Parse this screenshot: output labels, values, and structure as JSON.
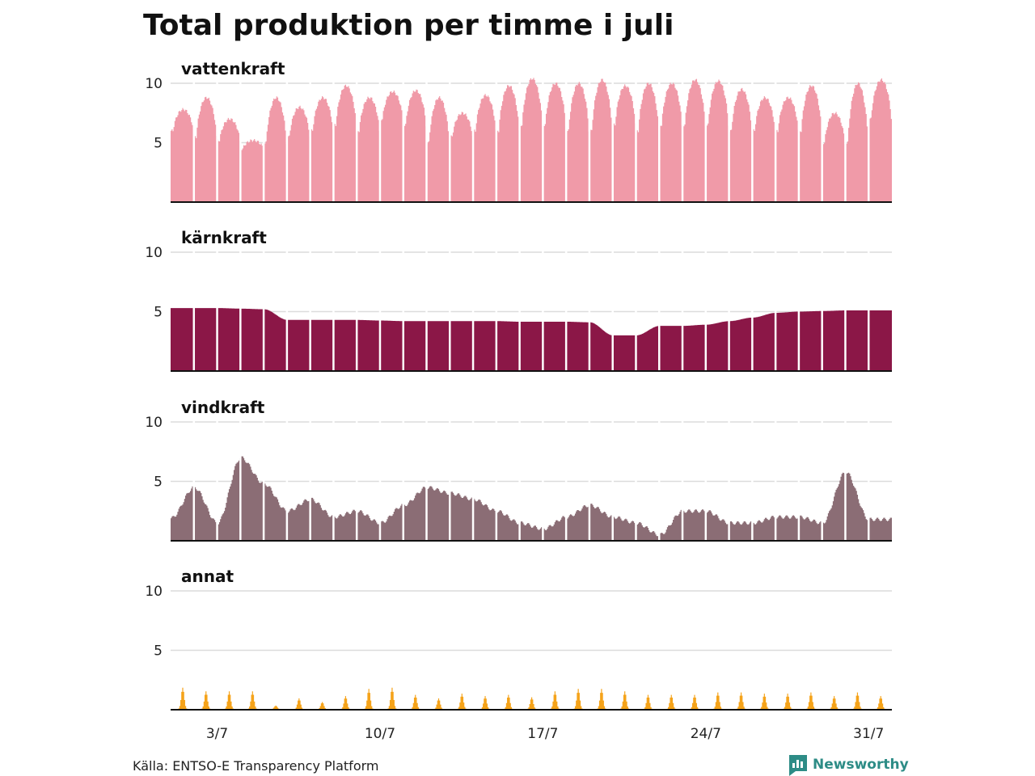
{
  "title": "Total produktion per timme i juli",
  "source": "Källa: ENTSO-E Transparency Platform",
  "brand": "Newsworthy",
  "brand_icon": "bar-chart-speech-bubble-icon",
  "colors": {
    "vattenkraft": "#f09aa8",
    "kärnkraft": "#8b1747",
    "vindkraft": "#8b6d75",
    "annat": "#f5a31a",
    "brand": "#2d8c86"
  },
  "chart_data": {
    "type": "area",
    "small_multiples": true,
    "x_unit": "day of July (hourly data)",
    "xlim": [
      1,
      32
    ],
    "xticks": [
      {
        "day": 3,
        "label": "3/7"
      },
      {
        "day": 10,
        "label": "10/7"
      },
      {
        "day": 17,
        "label": "17/7"
      },
      {
        "day": 24,
        "label": "24/7"
      },
      {
        "day": 31,
        "label": "31/7"
      }
    ],
    "ylim": [
      0,
      10.5
    ],
    "yticks": [
      5,
      10
    ],
    "grid": true,
    "series": [
      {
        "name": "vattenkraft",
        "daily_shape": "strong daily cycle, low at night, peak daytime",
        "daily_min": [
          6.0,
          5.5,
          5.2,
          4.5,
          5.0,
          5.5,
          6.0,
          6.5,
          6.0,
          7.0,
          6.5,
          5.0,
          5.5,
          6.0,
          6.0,
          6.5,
          6.5,
          6.0,
          6.0,
          6.5,
          6.0,
          6.5,
          6.5,
          6.5,
          6.0,
          6.0,
          6.0,
          6.0,
          5.0,
          5.0,
          7.0
        ],
        "daily_max": [
          7.8,
          8.8,
          7.0,
          5.2,
          8.8,
          8.0,
          8.8,
          9.8,
          8.8,
          9.3,
          9.4,
          8.8,
          7.5,
          9.0,
          9.8,
          10.4,
          10.0,
          10.0,
          10.3,
          9.8,
          10.0,
          10.0,
          10.3,
          10.2,
          9.5,
          8.8,
          8.8,
          9.8,
          7.5,
          10.0,
          10.3
        ]
      },
      {
        "name": "kärnkraft",
        "daily_shape": "flat, stepwise level changes",
        "daily_value": [
          5.3,
          5.3,
          5.3,
          5.25,
          5.2,
          4.3,
          4.3,
          4.3,
          4.3,
          4.25,
          4.2,
          4.2,
          4.2,
          4.2,
          4.2,
          4.15,
          4.15,
          4.15,
          4.1,
          3.0,
          3.0,
          3.8,
          3.8,
          3.9,
          4.2,
          4.5,
          4.9,
          5.0,
          5.05,
          5.1,
          5.1
        ]
      },
      {
        "name": "vindkraft",
        "daily_shape": "smooth, weather driven",
        "daily_value": [
          1.9,
          4.5,
          1.5,
          7.0,
          4.8,
          2.5,
          3.5,
          2.0,
          2.5,
          1.5,
          3.0,
          4.5,
          4.0,
          3.5,
          2.5,
          1.5,
          1.0,
          2.0,
          3.0,
          2.0,
          1.5,
          0.5,
          2.5,
          2.5,
          1.5,
          1.5,
          2.0,
          2.0,
          1.5,
          5.8,
          1.8
        ]
      },
      {
        "name": "annat",
        "daily_shape": "daytime peak, near zero at night",
        "daily_peak": [
          1.8,
          1.5,
          1.5,
          1.5,
          0.3,
          0.9,
          0.6,
          1.1,
          1.7,
          1.8,
          1.2,
          0.9,
          1.3,
          1.1,
          1.2,
          1.0,
          1.5,
          1.7,
          1.7,
          1.5,
          1.2,
          1.2,
          1.2,
          1.4,
          1.4,
          1.3,
          1.3,
          1.4,
          1.1,
          1.4,
          1.1
        ]
      }
    ]
  }
}
